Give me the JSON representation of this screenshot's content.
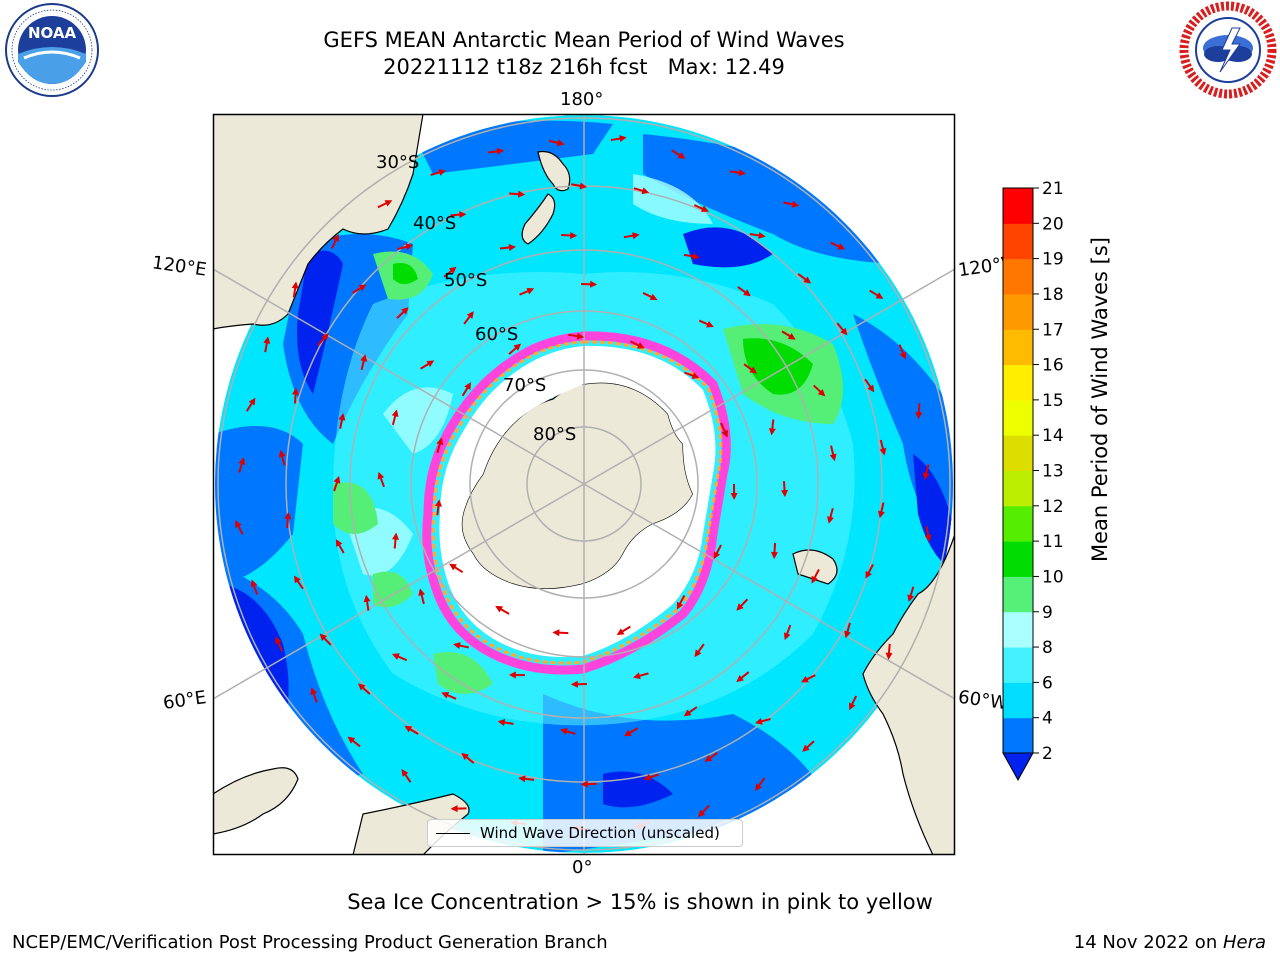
{
  "header": {
    "title_line1": "GEFS MEAN Antarctic Mean Period of Wind Waves",
    "title_line2": "20221112 t18z 216h fcst   Max: 12.49"
  },
  "logos": {
    "left": {
      "icon": "noaa-logo-icon",
      "text": "NOAA",
      "ring_text": "NATIONAL OCEANIC AND ATMOSPHERIC ADMINISTRATION · U.S. DEPARTMENT OF COMMERCE"
    },
    "right": {
      "icon": "nws-logo-icon",
      "ring_text": "NATIONAL WEATHER SERVICE"
    }
  },
  "map": {
    "projection": "south polar stereographic",
    "meridian_labels": {
      "top": "180°",
      "bottom": "0°",
      "left_top": "120°E",
      "left_bottom": "60°E",
      "right_top": "120°W",
      "right_bottom": "60°W"
    },
    "latitude_labels": [
      "30°S",
      "40°S",
      "50°S",
      "60°S",
      "70°S",
      "80°S"
    ],
    "legend_label": "Wind Wave Direction (unscaled)",
    "colors": {
      "land": "#ede9d8",
      "ice_white": "#ffffff",
      "ice_edge_pink": "#ff44dd",
      "ice_edge_orange": "#ffaa33",
      "arrow": "#dd0000",
      "grid": "#b0b0b0"
    }
  },
  "colorbar": {
    "label": "Mean Period of Wind Waves [s]",
    "ticks": [
      "2",
      "4",
      "6",
      "8",
      "9",
      "10",
      "11",
      "12",
      "13",
      "14",
      "15",
      "16",
      "17",
      "18",
      "19",
      "20",
      "21"
    ],
    "levels": [
      {
        "from": 2,
        "to": 4,
        "color": "#0077ff"
      },
      {
        "from": 4,
        "to": 6,
        "color": "#00ddff"
      },
      {
        "from": 6,
        "to": 8,
        "color": "#44f2ff"
      },
      {
        "from": 8,
        "to": 9,
        "color": "#aaffff"
      },
      {
        "from": 9,
        "to": 10,
        "color": "#55f077"
      },
      {
        "from": 10,
        "to": 11,
        "color": "#00dd00"
      },
      {
        "from": 11,
        "to": 12,
        "color": "#55ee00"
      },
      {
        "from": 12,
        "to": 13,
        "color": "#bbee00"
      },
      {
        "from": 13,
        "to": 14,
        "color": "#dddd00"
      },
      {
        "from": 14,
        "to": 15,
        "color": "#eeff00"
      },
      {
        "from": 15,
        "to": 16,
        "color": "#ffee00"
      },
      {
        "from": 16,
        "to": 17,
        "color": "#ffbb00"
      },
      {
        "from": 17,
        "to": 18,
        "color": "#ff9900"
      },
      {
        "from": 18,
        "to": 19,
        "color": "#ff7700"
      },
      {
        "from": 19,
        "to": 20,
        "color": "#ff4400"
      },
      {
        "from": 20,
        "to": 21,
        "color": "#ff0000"
      }
    ],
    "extend_below_color": "#0022ee"
  },
  "captions": {
    "sea_ice": "Sea Ice Concentration > 15% is shown in pink to yellow",
    "branch": "NCEP/EMC/Verification Post Processing Product Generation Branch",
    "date": "14 Nov 2022 on ",
    "machine": "Hera"
  }
}
